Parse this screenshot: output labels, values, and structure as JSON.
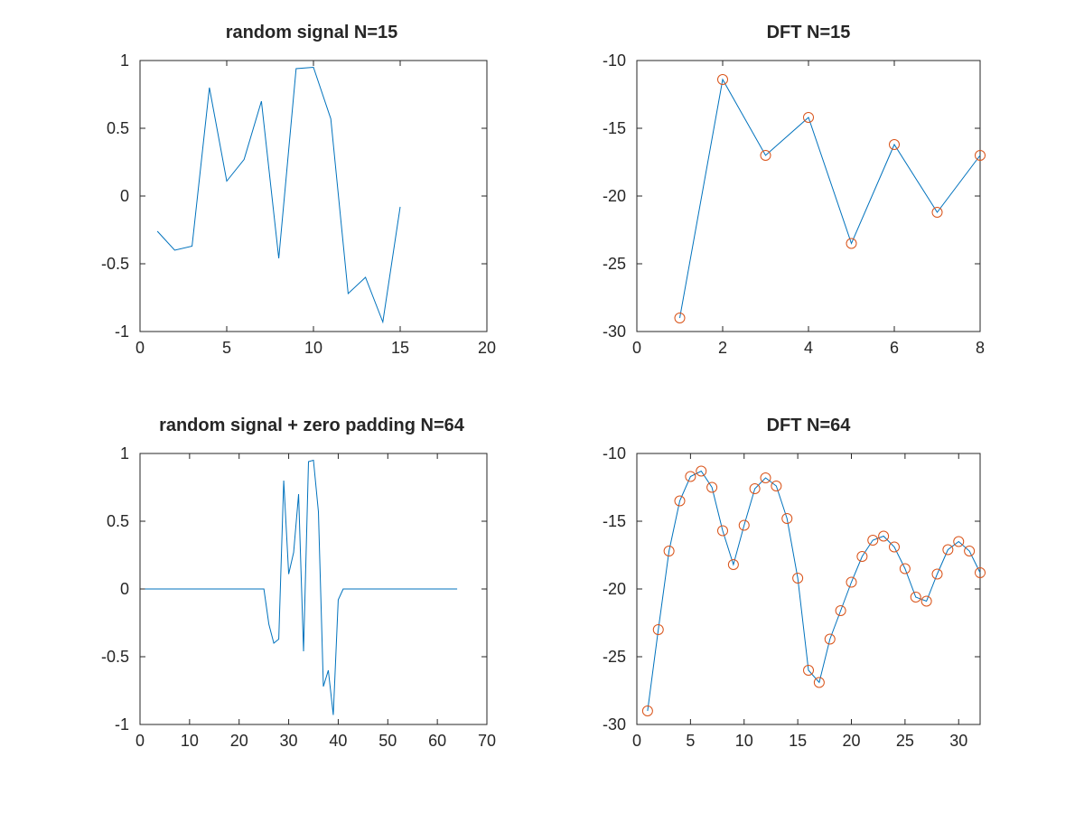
{
  "colors": {
    "line": "#0072bd",
    "marker": "#d95319",
    "axis": "#262626",
    "background": "#ffffff"
  },
  "chart_data": [
    {
      "type": "line",
      "title": "random signal N=15",
      "xlabel": "",
      "ylabel": "",
      "xlim": [
        0,
        20
      ],
      "ylim": [
        -1,
        1
      ],
      "xticks": [
        0,
        5,
        10,
        15,
        20
      ],
      "yticks": [
        -1,
        -0.5,
        0,
        0.5,
        1
      ],
      "xtick_labels": [
        "0",
        "5",
        "10",
        "15",
        "20"
      ],
      "ytick_labels": [
        "-1",
        "-0.5",
        "0",
        "0.5",
        "1"
      ],
      "grid": false,
      "markers": false,
      "x": [
        1,
        2,
        3,
        4,
        5,
        6,
        7,
        8,
        9,
        10,
        11,
        12,
        13,
        14,
        15
      ],
      "y": [
        -0.26,
        -0.4,
        -0.37,
        0.8,
        0.11,
        0.27,
        0.7,
        -0.46,
        0.94,
        0.95,
        0.57,
        -0.72,
        -0.6,
        -0.93,
        -0.08
      ]
    },
    {
      "type": "line",
      "title": "DFT N=15",
      "xlabel": "",
      "ylabel": "",
      "xlim": [
        0,
        8
      ],
      "ylim": [
        -30,
        -10
      ],
      "xticks": [
        0,
        2,
        4,
        6,
        8
      ],
      "yticks": [
        -30,
        -25,
        -20,
        -15,
        -10
      ],
      "xtick_labels": [
        "0",
        "2",
        "4",
        "6",
        "8"
      ],
      "ytick_labels": [
        "-30",
        "-25",
        "-20",
        "-15",
        "-10"
      ],
      "grid": false,
      "markers": true,
      "x": [
        1,
        2,
        3,
        4,
        5,
        6,
        7,
        8
      ],
      "y": [
        -29,
        -11.4,
        -17,
        -14.2,
        -23.5,
        -16.2,
        -21.2,
        -17
      ]
    },
    {
      "type": "line",
      "title": "random signal + zero padding N=64",
      "xlabel": "",
      "ylabel": "",
      "xlim": [
        0,
        70
      ],
      "ylim": [
        -1,
        1
      ],
      "xticks": [
        0,
        10,
        20,
        30,
        40,
        50,
        60,
        70
      ],
      "yticks": [
        -1,
        -0.5,
        0,
        0.5,
        1
      ],
      "xtick_labels": [
        "0",
        "10",
        "20",
        "30",
        "40",
        "50",
        "60",
        "70"
      ],
      "ytick_labels": [
        "-1",
        "-0.5",
        "0",
        "0.5",
        "1"
      ],
      "grid": false,
      "markers": false,
      "x": [
        1,
        25,
        26,
        27,
        28,
        29,
        30,
        31,
        32,
        33,
        34,
        35,
        36,
        37,
        38,
        39,
        40,
        41,
        64
      ],
      "y": [
        0,
        0,
        -0.26,
        -0.4,
        -0.37,
        0.8,
        0.11,
        0.27,
        0.7,
        -0.46,
        0.94,
        0.95,
        0.57,
        -0.72,
        -0.6,
        -0.93,
        -0.08,
        0,
        0
      ]
    },
    {
      "type": "line",
      "title": "DFT N=64",
      "xlabel": "",
      "ylabel": "",
      "xlim": [
        0,
        32
      ],
      "ylim": [
        -30,
        -10
      ],
      "xticks": [
        0,
        5,
        10,
        15,
        20,
        25,
        30
      ],
      "yticks": [
        -30,
        -25,
        -20,
        -15,
        -10
      ],
      "xtick_labels": [
        "0",
        "5",
        "10",
        "15",
        "20",
        "25",
        "30"
      ],
      "ytick_labels": [
        "-30",
        "-25",
        "-20",
        "-15",
        "-10"
      ],
      "grid": false,
      "markers": true,
      "x": [
        1,
        2,
        3,
        4,
        5,
        6,
        7,
        8,
        9,
        10,
        11,
        12,
        13,
        14,
        15,
        16,
        17,
        18,
        19,
        20,
        21,
        22,
        23,
        24,
        25,
        26,
        27,
        28,
        29,
        30,
        31,
        32
      ],
      "y": [
        -29,
        -23,
        -17.2,
        -13.5,
        -11.7,
        -11.3,
        -12.5,
        -15.7,
        -18.2,
        -15.3,
        -12.6,
        -11.8,
        -12.4,
        -14.8,
        -19.2,
        -26,
        -26.9,
        -23.7,
        -21.6,
        -19.5,
        -17.6,
        -16.4,
        -16.1,
        -16.9,
        -18.5,
        -20.6,
        -20.9,
        -18.9,
        -17.1,
        -16.5,
        -17.2,
        -18.8
      ]
    }
  ]
}
